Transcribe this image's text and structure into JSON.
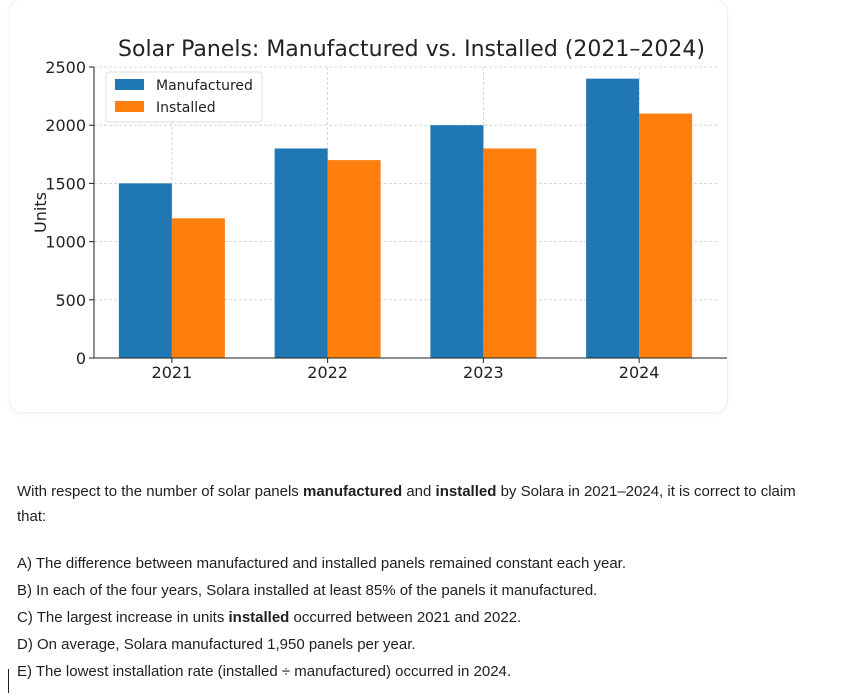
{
  "chart_data": {
    "type": "bar",
    "title": "Solar Panels: Manufactured vs. Installed (2021–2024)",
    "xlabel": "",
    "ylabel": "Units",
    "categories": [
      "2021",
      "2022",
      "2023",
      "2024"
    ],
    "series": [
      {
        "name": "Manufactured",
        "color": "#1f77b4",
        "values": [
          1500,
          1800,
          2000,
          2400
        ]
      },
      {
        "name": "Installed",
        "color": "#ff7f0e",
        "values": [
          1200,
          1700,
          1800,
          2100
        ]
      }
    ],
    "ylim": [
      0,
      2500
    ],
    "yticks": [
      0,
      500,
      1000,
      1500,
      2000,
      2500
    ],
    "grid": true,
    "legend": "top-left"
  },
  "question": {
    "part1": "With respect to the number of solar panels ",
    "bold1": "manufactured",
    "part2": " and ",
    "bold2": "installed",
    "part3": " by Solara in 2021–2024, it is correct to claim that:"
  },
  "options": {
    "a": "A) The difference between manufactured and installed panels remained constant each year.",
    "b": "B) In each of the four years, Solara installed at least 85% of the panels it manufactured.",
    "c_pre": "C) The largest increase in units ",
    "c_bold": "installed",
    "c_post": " occurred between 2021 and 2022.",
    "d": "D) On average, Solara manufactured 1,950 panels per year.",
    "e": "E) The lowest installation rate (installed ÷ manufactured) occurred in 2024."
  }
}
